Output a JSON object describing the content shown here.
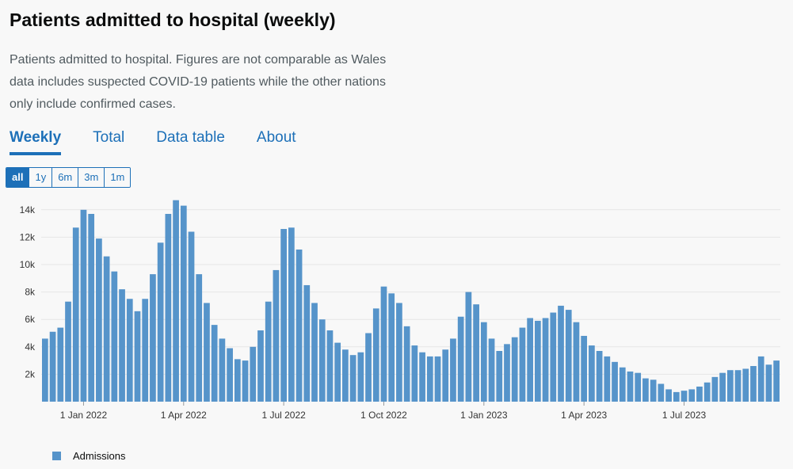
{
  "page": {
    "title": "Patients admitted to hospital (weekly)",
    "description": "Patients admitted to hospital. Figures are not comparable as Wales data includes suspected COVID-19 patients while the other nations only include confirmed cases."
  },
  "tabs": [
    {
      "label": "Weekly",
      "active": true
    },
    {
      "label": "Total",
      "active": false
    },
    {
      "label": "Data table",
      "active": false
    },
    {
      "label": "About",
      "active": false
    }
  ],
  "ranges": [
    {
      "label": "all",
      "active": true
    },
    {
      "label": "1y",
      "active": false
    },
    {
      "label": "6m",
      "active": false
    },
    {
      "label": "3m",
      "active": false
    },
    {
      "label": "1m",
      "active": false
    }
  ],
  "colors": {
    "bar": "#5694ca",
    "accent": "#1d70b8",
    "grid": "#e6e6e6"
  },
  "chart_data": {
    "type": "bar",
    "title": "",
    "xlabel": "",
    "ylabel": "",
    "ylim": [
      0,
      14800
    ],
    "y_ticks": [
      {
        "value": 2000,
        "label": "2k"
      },
      {
        "value": 4000,
        "label": "4k"
      },
      {
        "value": 6000,
        "label": "6k"
      },
      {
        "value": 8000,
        "label": "8k"
      },
      {
        "value": 10000,
        "label": "10k"
      },
      {
        "value": 12000,
        "label": "12k"
      },
      {
        "value": 14000,
        "label": "14k"
      }
    ],
    "x_ticks": [
      {
        "label": "1 Jan 2022",
        "index": 5
      },
      {
        "label": "1 Apr 2022",
        "index": 18
      },
      {
        "label": "1 Jul 2022",
        "index": 31
      },
      {
        "label": "1 Oct 2022",
        "index": 44
      },
      {
        "label": "1 Jan 2023",
        "index": 57
      },
      {
        "label": "1 Apr 2023",
        "index": 70
      },
      {
        "label": "1 Jul 2023",
        "index": 83
      }
    ],
    "grid": true,
    "legend": "bottom-left",
    "series": [
      {
        "name": "Admissions",
        "values": [
          4600,
          5100,
          5400,
          7300,
          12700,
          14000,
          13700,
          11900,
          10600,
          9500,
          8200,
          7500,
          6600,
          7500,
          9300,
          11600,
          13700,
          14700,
          14300,
          12400,
          9300,
          7200,
          5600,
          4600,
          3900,
          3100,
          3000,
          4000,
          5200,
          7300,
          9600,
          12600,
          12700,
          11100,
          8500,
          7200,
          6000,
          5200,
          4300,
          3800,
          3400,
          3600,
          5000,
          6800,
          8400,
          7900,
          7200,
          5500,
          4100,
          3600,
          3300,
          3300,
          3800,
          4600,
          6200,
          8000,
          7100,
          5800,
          4600,
          3700,
          4200,
          4700,
          5400,
          6100,
          5900,
          6100,
          6500,
          7000,
          6700,
          5800,
          4800,
          4100,
          3700,
          3300,
          2900,
          2500,
          2200,
          2100,
          1700,
          1600,
          1300,
          900,
          700,
          800,
          900,
          1100,
          1400,
          1800,
          2100,
          2300,
          2300,
          2400,
          2600,
          3300,
          2700,
          3000
        ]
      }
    ]
  }
}
